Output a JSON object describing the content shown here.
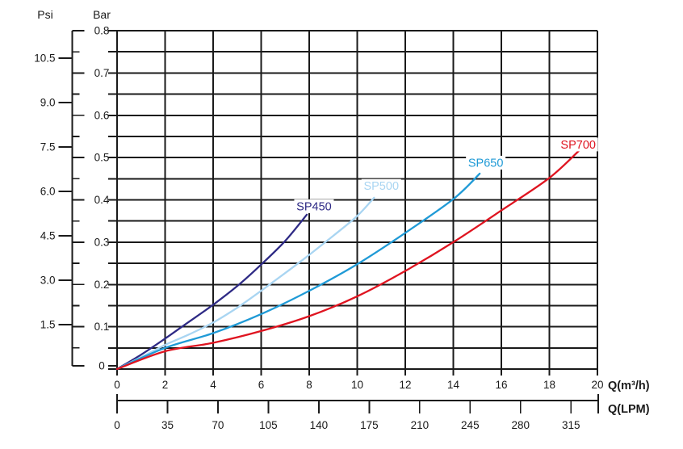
{
  "chart_data": {
    "type": "line",
    "title": "",
    "grid": "on",
    "grid_color": "#1a1a1a",
    "text_color": "#1a1a1a",
    "x_axis": {
      "label": "Q(m³/h)",
      "min": 0,
      "max": 20,
      "grid_step": 2,
      "tick_labels": [
        "0",
        "2",
        "4",
        "6",
        "8",
        "10",
        "12",
        "14",
        "16",
        "18",
        "20"
      ]
    },
    "x2_axis": {
      "label": "Q(LPM)",
      "tick_labels": [
        "0",
        "35",
        "70",
        "105",
        "140",
        "175",
        "210",
        "245",
        "280",
        "315"
      ],
      "lpm_per_m3h": 16.6667
    },
    "y_axis_bar": {
      "label": "Bar",
      "min": 0,
      "max": 0.8,
      "grid_step": 0.05,
      "major_tick_labels": [
        "0",
        "0.1",
        "0.2",
        "0.3",
        "0.4",
        "0.5",
        "0.6",
        "0.7",
        "0.8"
      ],
      "minor_ticks": [
        0.05,
        0.15,
        0.25,
        0.35,
        0.45,
        0.55,
        0.65,
        0.75
      ]
    },
    "y_axis_psi": {
      "label": "Psi",
      "tick_labels": [
        "1.5",
        "3.0",
        "4.5",
        "6.0",
        "7.5",
        "9.0",
        "10.5"
      ],
      "bar_per_psi": 0.07
    },
    "series": [
      {
        "name": "SP450",
        "color": "#2e2a85",
        "points": [
          [
            0,
            0
          ],
          [
            1,
            0.034
          ],
          [
            2,
            0.072
          ],
          [
            3,
            0.112
          ],
          [
            4,
            0.152
          ],
          [
            5,
            0.196
          ],
          [
            6,
            0.247
          ],
          [
            7,
            0.303
          ],
          [
            7.9,
            0.365
          ]
        ],
        "label_at": [
          8.2,
          0.384
        ]
      },
      {
        "name": "SP500",
        "color": "#a9d5f2",
        "points": [
          [
            0,
            0
          ],
          [
            1,
            0.028
          ],
          [
            2,
            0.057
          ],
          [
            3,
            0.082
          ],
          [
            4,
            0.11
          ],
          [
            5,
            0.145
          ],
          [
            6,
            0.185
          ],
          [
            7,
            0.227
          ],
          [
            8,
            0.27
          ],
          [
            9,
            0.315
          ],
          [
            10,
            0.362
          ],
          [
            10.7,
            0.405
          ]
        ],
        "label_at": [
          11.0,
          0.432
        ]
      },
      {
        "name": "SP650",
        "color": "#1f9ad6",
        "points": [
          [
            0,
            0
          ],
          [
            2,
            0.05
          ],
          [
            4,
            0.085
          ],
          [
            6,
            0.13
          ],
          [
            8,
            0.185
          ],
          [
            10,
            0.248
          ],
          [
            12,
            0.322
          ],
          [
            14,
            0.402
          ],
          [
            15.1,
            0.462
          ]
        ],
        "label_at": [
          15.35,
          0.487
        ]
      },
      {
        "name": "SP700",
        "color": "#df1420",
        "points": [
          [
            0,
            0
          ],
          [
            2,
            0.042
          ],
          [
            4,
            0.062
          ],
          [
            6,
            0.09
          ],
          [
            8,
            0.125
          ],
          [
            10,
            0.172
          ],
          [
            12,
            0.232
          ],
          [
            14,
            0.3
          ],
          [
            16,
            0.375
          ],
          [
            18,
            0.452
          ],
          [
            19.3,
            0.52
          ]
        ],
        "label_at": [
          19.2,
          0.53
        ]
      }
    ]
  }
}
